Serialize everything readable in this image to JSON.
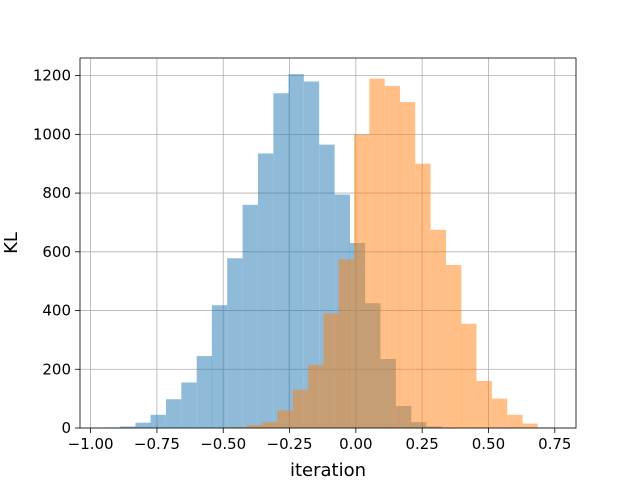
{
  "chart_data": {
    "type": "bar",
    "subtype": "overlapping-histogram",
    "title": "",
    "xlabel": "iteration",
    "ylabel": "KL",
    "xlim": [
      -1.04,
      0.83
    ],
    "ylim": [
      0,
      1260
    ],
    "xticks": [
      -1.0,
      -0.75,
      -0.5,
      -0.25,
      0.0,
      0.25,
      0.5,
      0.75
    ],
    "xtick_labels": [
      "−1.00",
      "−0.75",
      "−0.50",
      "−0.25",
      "0.00",
      "0.25",
      "0.50",
      "0.75"
    ],
    "yticks": [
      0,
      200,
      400,
      600,
      800,
      1000,
      1200
    ],
    "ytick_labels": [
      "0",
      "200",
      "400",
      "600",
      "800",
      "1000",
      "1200"
    ],
    "grid": true,
    "bin_width": 0.0578,
    "series": [
      {
        "color": "#1f77b4",
        "alpha": 0.5,
        "bin_starts": [
          -0.947,
          -0.889,
          -0.831,
          -0.774,
          -0.716,
          -0.658,
          -0.6,
          -0.543,
          -0.485,
          -0.427,
          -0.369,
          -0.311,
          -0.254,
          -0.196,
          -0.138,
          -0.08,
          -0.023,
          0.035,
          0.093,
          0.151,
          0.208,
          0.266,
          0.324
        ],
        "values": [
          2,
          5,
          18,
          45,
          98,
          155,
          245,
          418,
          578,
          760,
          935,
          1140,
          1205,
          1180,
          965,
          795,
          630,
          425,
          235,
          75,
          20,
          5,
          1
        ]
      },
      {
        "color": "#ff7f0e",
        "alpha": 0.5,
        "bin_starts": [
          -0.469,
          -0.411,
          -0.353,
          -0.296,
          -0.238,
          -0.18,
          -0.122,
          -0.065,
          -0.007,
          0.051,
          0.109,
          0.166,
          0.224,
          0.282,
          0.34,
          0.397,
          0.455,
          0.513,
          0.571,
          0.628,
          0.686
        ],
        "values": [
          2,
          10,
          20,
          60,
          130,
          215,
          390,
          575,
          1000,
          1190,
          1165,
          1110,
          900,
          675,
          555,
          355,
          160,
          100,
          45,
          15,
          2
        ]
      }
    ]
  }
}
